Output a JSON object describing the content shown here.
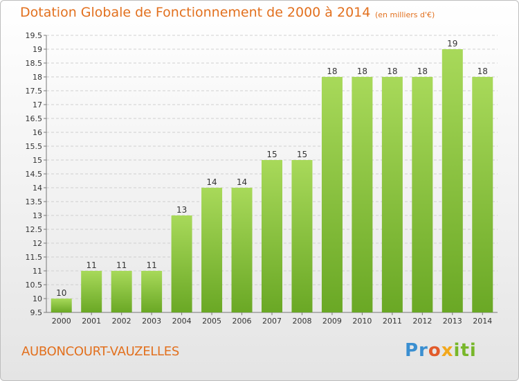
{
  "title": "Dotation Globale de Fonctionnement de 2000 à 2014",
  "subtitle": "(en milliers d'€)",
  "commune": "AUBONCOURT-VAUZELLES",
  "logo": {
    "p1": "Pr",
    "p2": "o",
    "p3": "x",
    "p4": "iti"
  },
  "colors": {
    "title": "#e2701e",
    "bar_light": "#a8d95a",
    "bar_dark": "#6aa825",
    "grid": "#cccccc"
  },
  "chart_data": {
    "type": "bar",
    "title": "Dotation Globale de Fonctionnement de 2000 à 2014",
    "subtitle": "(en milliers d'€)",
    "categories": [
      "2000",
      "2001",
      "2002",
      "2003",
      "2004",
      "2005",
      "2006",
      "2007",
      "2008",
      "2009",
      "2010",
      "2011",
      "2012",
      "2013",
      "2014"
    ],
    "values": [
      10,
      11,
      11,
      11,
      13,
      14,
      14,
      15,
      15,
      18,
      18,
      18,
      18,
      19,
      18
    ],
    "data_labels": [
      "10",
      "11",
      "11",
      "11",
      "13",
      "14",
      "14",
      "15",
      "15",
      "18",
      "18",
      "18",
      "18",
      "19",
      "18"
    ],
    "ylim": [
      9.5,
      19.5
    ],
    "yticks": [
      9.5,
      10,
      10.5,
      11,
      11.5,
      12,
      12.5,
      13,
      13.5,
      14,
      14.5,
      15,
      15.5,
      16,
      16.5,
      17,
      17.5,
      18,
      18.5,
      19,
      19.5
    ],
    "ytick_labels": [
      "9.5",
      "10",
      "10.5",
      "11",
      "11.5",
      "12",
      "12.5",
      "13",
      "13.5",
      "14",
      "14.5",
      "15",
      "15.5",
      "16",
      "16.5",
      "17",
      "17.5",
      "18",
      "18.5",
      "19",
      "19.5"
    ],
    "grid": true,
    "legend": "none"
  }
}
